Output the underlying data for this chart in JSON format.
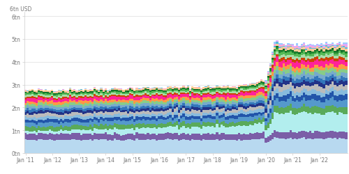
{
  "ylabel": "6tn USD",
  "ylim": [
    0,
    6.2
  ],
  "ytick_vals": [
    0,
    1,
    2,
    3,
    4,
    5,
    6
  ],
  "ytick_labels": [
    "0tn",
    "1tn",
    "2tn",
    "3tn",
    "4tn",
    "5tn",
    "6tn"
  ],
  "n_bars": 145,
  "colors": [
    "#b8d9f0",
    "#7b5ea7",
    "#b2eeee",
    "#5aaa5a",
    "#5599cc",
    "#2255aa",
    "#88bbdd",
    "#bbbbbb",
    "#223388",
    "#3377bb",
    "#77aacc",
    "#88cc88",
    "#ff9944",
    "#ff2299",
    "#cc4400",
    "#aaddaa",
    "#55bb55",
    "#228833",
    "#006622",
    "#ffcc99",
    "#55bbdd",
    "#ffaacc",
    "#ddaaff",
    "#99ccff"
  ],
  "background_color": "#ffffff",
  "tick_fontsize": 5.5,
  "label_fontsize": 5.5
}
